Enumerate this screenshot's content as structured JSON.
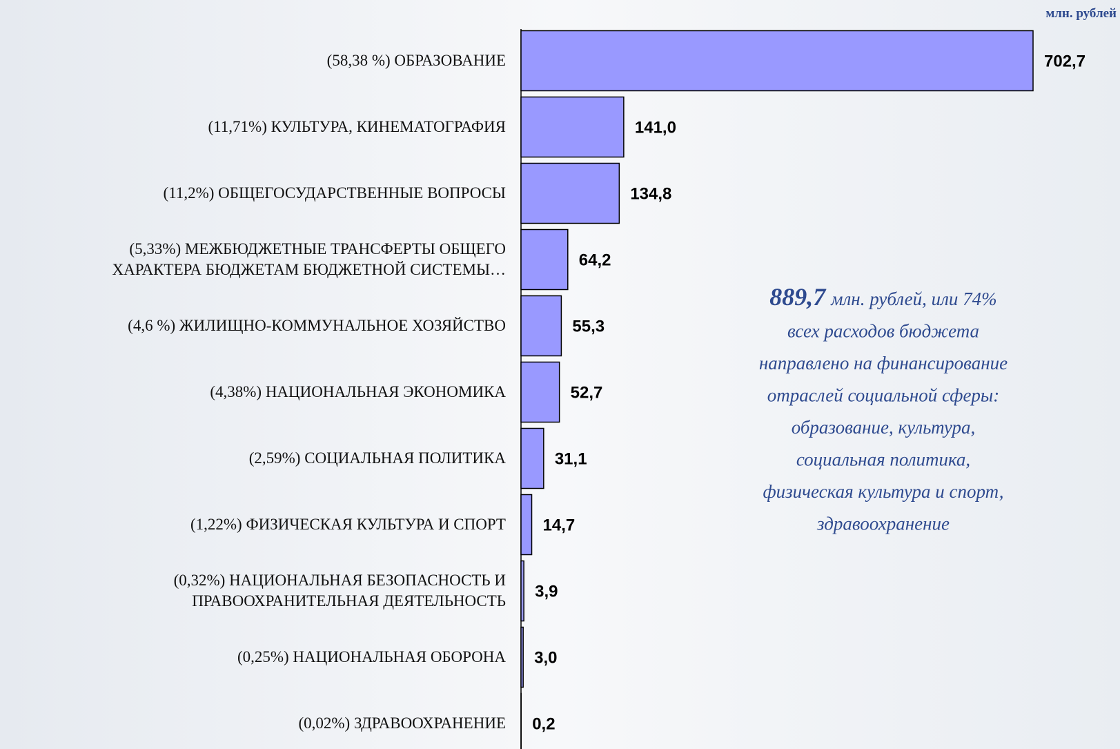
{
  "chart_data": {
    "type": "barh",
    "unit_label": "млн. рублей",
    "categories": [
      "(58,38 %) ОБРАЗОВАНИЕ",
      "(11,71%) КУЛЬТУРА, КИНЕМАТОГРАФИЯ",
      "(11,2%) ОБЩЕГОСУДАРСТВЕННЫЕ ВОПРОСЫ",
      "(5,33%) МЕЖБЮДЖЕТНЫЕ ТРАНСФЕРТЫ ОБЩЕГО\nХАРАКТЕРА БЮДЖЕТАМ БЮДЖЕТНОЙ СИСТЕМЫ…",
      "(4,6 %) ЖИЛИЩНО-КОММУНАЛЬНОЕ ХОЗЯЙСТВО",
      "(4,38%) НАЦИОНАЛЬНАЯ ЭКОНОМИКА",
      "(2,59%) СОЦИАЛЬНАЯ ПОЛИТИКА",
      "(1,22%) ФИЗИЧЕСКАЯ КУЛЬТУРА И СПОРТ",
      "(0,32%) НАЦИОНАЛЬНАЯ БЕЗОПАСНОСТЬ И\nПРАВООХРАНИТЕЛЬНАЯ ДЕЯТЕЛЬНОСТЬ",
      "(0,25%) НАЦИОНАЛЬНАЯ ОБОРОНА",
      "(0,02%) ЗДРАВООХРАНЕНИЕ"
    ],
    "values": [
      702.7,
      141.0,
      134.8,
      64.2,
      55.3,
      52.7,
      31.1,
      14.7,
      3.9,
      3.0,
      0.2
    ],
    "value_labels": [
      "702,7",
      "141,0",
      "134,8",
      "64,2",
      "55,3",
      "52,7",
      "31,1",
      "14,7",
      "3,9",
      "3,0",
      "0,2"
    ],
    "color": "#9999ff",
    "annotation": {
      "lead": "889,7",
      "lines": [
        "млн. рублей, или 74%",
        "всех расходов бюджета",
        "направлено на финансирование",
        "отраслей социальной сферы:",
        "образование, культура,",
        "социальная политика,",
        "физическая культура и спорт,",
        "здравоохранение"
      ]
    }
  }
}
